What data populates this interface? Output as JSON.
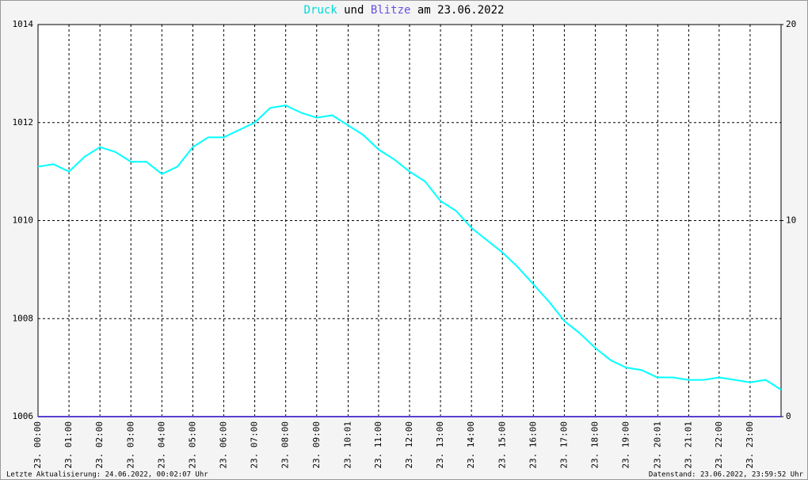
{
  "chart_data": {
    "type": "line",
    "title_parts": [
      "Druck",
      "und",
      "Blitze",
      "am 23.06.2022"
    ],
    "x": [
      0,
      0.5,
      1,
      1.5,
      2,
      2.5,
      3,
      3.5,
      4,
      4.5,
      5,
      5.5,
      6,
      6.5,
      7,
      7.5,
      8,
      8.5,
      9,
      9.5,
      10,
      10.5,
      11,
      11.5,
      12,
      12.5,
      13,
      13.5,
      14,
      14.5,
      15,
      15.5,
      16,
      16.5,
      17,
      17.5,
      18,
      18.5,
      19,
      19.5,
      20,
      20.5,
      21,
      21.5,
      22,
      22.5,
      23,
      23.5,
      24
    ],
    "series": [
      {
        "name": "Druck",
        "color": "#00ffff",
        "values": [
          1011.1,
          1011.15,
          1011.0,
          1011.3,
          1011.5,
          1011.4,
          1011.2,
          1011.2,
          1010.95,
          1011.1,
          1011.5,
          1011.7,
          1011.7,
          1011.85,
          1012.0,
          1012.3,
          1012.35,
          1012.2,
          1012.1,
          1012.15,
          1011.95,
          1011.75,
          1011.45,
          1011.25,
          1011.0,
          1010.8,
          1010.4,
          1010.2,
          1009.85,
          1009.6,
          1009.35,
          1009.05,
          1008.7,
          1008.35,
          1007.95,
          1007.7,
          1007.4,
          1007.15,
          1007.0,
          1006.95,
          1006.8,
          1006.8,
          1006.75,
          1006.75,
          1006.8,
          1006.75,
          1006.7,
          1006.75,
          1006.55
        ]
      },
      {
        "name": "Blitze",
        "color": "#5a3fd0",
        "axis": "y2",
        "values": [
          0,
          0,
          0,
          0,
          0,
          0,
          0,
          0,
          0,
          0,
          0,
          0,
          0,
          0,
          0,
          0,
          0,
          0,
          0,
          0,
          0,
          0,
          0,
          0,
          0,
          0,
          0,
          0,
          0,
          0,
          0,
          0,
          0,
          0,
          0,
          0,
          0,
          0,
          0,
          0,
          0,
          0,
          0,
          0,
          0,
          0,
          0,
          0,
          0
        ]
      }
    ],
    "xlim": [
      0,
      24
    ],
    "xticks": [
      {
        "value": 0,
        "label": "23. 00:00"
      },
      {
        "value": 1,
        "label": "23. 01:00"
      },
      {
        "value": 2,
        "label": "23. 02:00"
      },
      {
        "value": 3,
        "label": "23. 03:00"
      },
      {
        "value": 4,
        "label": "23. 04:00"
      },
      {
        "value": 5,
        "label": "23. 05:00"
      },
      {
        "value": 6,
        "label": "23. 06:00"
      },
      {
        "value": 7,
        "label": "23. 07:00"
      },
      {
        "value": 8,
        "label": "23. 08:00"
      },
      {
        "value": 9,
        "label": "23. 09:00"
      },
      {
        "value": 10.017,
        "label": "23. 10:01"
      },
      {
        "value": 11,
        "label": "23. 11:00"
      },
      {
        "value": 12,
        "label": "23. 12:00"
      },
      {
        "value": 13,
        "label": "23. 13:00"
      },
      {
        "value": 14,
        "label": "23. 14:00"
      },
      {
        "value": 15,
        "label": "23. 15:00"
      },
      {
        "value": 16,
        "label": "23. 16:00"
      },
      {
        "value": 17,
        "label": "23. 17:00"
      },
      {
        "value": 18,
        "label": "23. 18:00"
      },
      {
        "value": 19,
        "label": "23. 19:00"
      },
      {
        "value": 20.017,
        "label": "23. 20:01"
      },
      {
        "value": 21.017,
        "label": "23. 21:01"
      },
      {
        "value": 22,
        "label": "23. 22:00"
      },
      {
        "value": 23,
        "label": "23. 23:00"
      }
    ],
    "ylim": [
      1006,
      1014
    ],
    "yticks": [
      1006,
      1008,
      1010,
      1012,
      1014
    ],
    "y2lim": [
      0,
      20
    ],
    "y2ticks": [
      0,
      10,
      20
    ],
    "grid": true,
    "footer_left": "Letzte Aktualisierung: 24.06.2022, 00:02:07 Uhr",
    "footer_right": "Datenstand: 23.06.2022, 23:59:52 Uhr"
  }
}
